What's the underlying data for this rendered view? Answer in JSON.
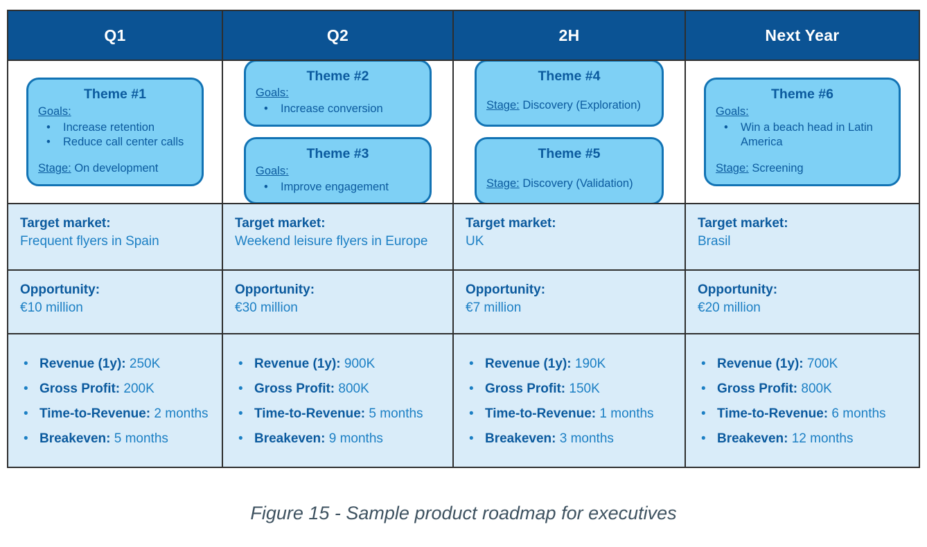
{
  "page": {
    "caption": "Figure 15 - Sample product roadmap for executives"
  },
  "colors": {
    "header_bg": "#0B5394",
    "header_text": "#FFFFFF",
    "card_bg": "#7ED0F5",
    "card_border": "#1273B4",
    "dark_text": "#0B5A9E",
    "value_text": "#1B7FC4",
    "row_bg": "#D9ECF9",
    "grid_border": "#2E2E2E",
    "caption_text": "#3E5260"
  },
  "labels": {
    "goals": "Goals:",
    "stage": "Stage:",
    "target_market": "Target market:",
    "opportunity": "Opportunity:"
  },
  "columns": [
    {
      "header": "Q1",
      "themes": [
        {
          "title": "Theme #1",
          "goals": [
            "Increase retention",
            "Reduce call center calls"
          ],
          "stage": "On development"
        }
      ],
      "target_market": "Frequent flyers in Spain",
      "opportunity": "€10 million",
      "metrics": [
        {
          "label": "Revenue (1y):",
          "value": "250K"
        },
        {
          "label": "Gross Profit:",
          "value": "200K"
        },
        {
          "label": "Time-to-Revenue:",
          "value": "2 months"
        },
        {
          "label": "Breakeven:",
          "value": "5 months"
        }
      ]
    },
    {
      "header": "Q2",
      "themes": [
        {
          "title": "Theme #2",
          "goals": [
            "Increase conversion"
          ]
        },
        {
          "title": "Theme #3",
          "goals": [
            "Improve engagement"
          ]
        }
      ],
      "target_market": "Weekend leisure flyers in Europe",
      "opportunity": "€30 million",
      "metrics": [
        {
          "label": "Revenue (1y):",
          "value": "900K"
        },
        {
          "label": "Gross Profit:",
          "value": "800K"
        },
        {
          "label": "Time-to-Revenue:",
          "value": "5 months"
        },
        {
          "label": "Breakeven:",
          "value": "9 months"
        }
      ]
    },
    {
      "header": "2H",
      "themes": [
        {
          "title": "Theme #4",
          "stage": "Discovery (Exploration)"
        },
        {
          "title": "Theme #5",
          "stage": "Discovery (Validation)"
        }
      ],
      "target_market": "UK",
      "opportunity": "€7 million",
      "metrics": [
        {
          "label": "Revenue (1y):",
          "value": "190K"
        },
        {
          "label": "Gross Profit:",
          "value": "150K"
        },
        {
          "label": "Time-to-Revenue:",
          "value": "1 months"
        },
        {
          "label": "Breakeven:",
          "value": "3 months"
        }
      ]
    },
    {
      "header": "Next Year",
      "themes": [
        {
          "title": "Theme #6",
          "goals": [
            "Win a beach head in Latin America"
          ],
          "stage": "Screening"
        }
      ],
      "target_market": "Brasil",
      "opportunity": "€20 million",
      "metrics": [
        {
          "label": "Revenue (1y):",
          "value": "700K"
        },
        {
          "label": "Gross Profit:",
          "value": "800K"
        },
        {
          "label": "Time-to-Revenue:",
          "value": "6 months"
        },
        {
          "label": "Breakeven:",
          "value": "12 months"
        }
      ]
    }
  ]
}
